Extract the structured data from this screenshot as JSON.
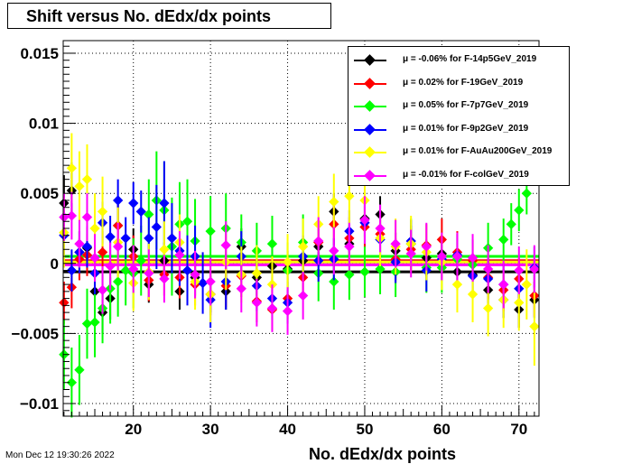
{
  "title": "Shift versus No. dEdx/dx points",
  "timestamp": "Mon Dec 12 19:30:26 2022",
  "chart_data": {
    "type": "scatter",
    "title": "Shift versus No. dEdx/dx points",
    "xlabel": "No. dEdx/dx points",
    "ylabel": "",
    "xlim": [
      10.9,
      72.6
    ],
    "ylim": [
      -0.0109,
      0.0159
    ],
    "x_ticks": [
      20,
      30,
      40,
      50,
      60,
      70
    ],
    "x_tick_labels": [
      "20",
      "30",
      "40",
      "50",
      "60",
      "70"
    ],
    "y_ticks": [
      -0.01,
      -0.005,
      0,
      0.005,
      0.01,
      0.015
    ],
    "y_tick_labels": [
      "−0.01",
      "−0.005",
      "0",
      "0.005",
      "0.01",
      "0.015"
    ],
    "grid": true,
    "legend_position": "top-right",
    "series": [
      {
        "name": "μ = -0.06% for F-14p5GeV_2019",
        "color": "#000000",
        "mean": -0.0006,
        "x": [
          11,
          12,
          13,
          14,
          15,
          16,
          17,
          18,
          20,
          22,
          24,
          26,
          28,
          30,
          32,
          34,
          36,
          38,
          40,
          42,
          44,
          46,
          48,
          50,
          52,
          54,
          56,
          58,
          60,
          62,
          64,
          66,
          68,
          70,
          72
        ],
        "y": [
          0.0043,
          0.0052,
          0.0008,
          0.0011,
          -0.002,
          -0.0035,
          -0.0025,
          0.0027,
          0.001,
          -0.0015,
          0.0002,
          -0.002,
          -0.001,
          -0.0022,
          -0.002,
          0.0012,
          -0.001,
          -0.0002,
          -0.0004,
          0.0002,
          0.0012,
          0.0037,
          0.0014,
          0.0032,
          0.0035,
          0.0009,
          0.0014,
          0.0004,
          0.0007,
          -0.0006,
          -0.0008,
          -0.0019,
          -0.0026,
          -0.0033,
          -0.0026
        ],
        "err": [
          0.002,
          0.002,
          0.0015,
          0.0015,
          0.0015,
          0.0015,
          0.0015,
          0.0015,
          0.0015,
          0.0013,
          0.0013,
          0.0013,
          0.0013,
          0.0013,
          0.0013,
          0.0013,
          0.0013,
          0.0013,
          0.0013,
          0.0013,
          0.0013,
          0.0013,
          0.0013,
          0.0013,
          0.0013,
          0.0013,
          0.0013,
          0.0013,
          0.0013,
          0.0013,
          0.0013,
          0.0013,
          0.0013,
          0.0013,
          0.0013
        ]
      },
      {
        "name": "μ = 0.02% for F-19GeV_2019",
        "color": "#ff0000",
        "mean": 0.0002,
        "x": [
          11,
          12,
          13,
          14,
          16,
          18,
          20,
          22,
          24,
          26,
          28,
          30,
          32,
          34,
          36,
          38,
          40,
          42,
          44,
          46,
          48,
          50,
          52,
          54,
          56,
          58,
          60,
          62,
          64,
          66,
          68,
          70,
          72
        ],
        "y": [
          -0.0028,
          -0.0017,
          0.0003,
          0.0006,
          0.0008,
          0.0027,
          0.0005,
          -0.0012,
          -0.0008,
          -0.001,
          -0.0015,
          -0.0022,
          -0.0016,
          -0.0009,
          -0.0027,
          -0.0033,
          -0.0025,
          -0.001,
          0.0015,
          0.0028,
          0.0018,
          0.0026,
          0.0021,
          0.0003,
          0.001,
          0.0013,
          0.0017,
          0.0008,
          0.0002,
          -0.001,
          -0.0019,
          -0.0011,
          -0.0023
        ],
        "err": [
          0.0015,
          0.0015,
          0.0015,
          0.0015,
          0.0015,
          0.0015,
          0.0015,
          0.0015,
          0.0015,
          0.0015,
          0.0015,
          0.0015,
          0.0015,
          0.0015,
          0.0015,
          0.0015,
          0.0015,
          0.0015,
          0.0015,
          0.0015,
          0.0015,
          0.0015,
          0.0015,
          0.0015,
          0.0015,
          0.0015,
          0.0015,
          0.0015,
          0.0015,
          0.0015,
          0.0015,
          0.0015,
          0.0015
        ]
      },
      {
        "name": "μ = 0.05% for F-7p7GeV_2019",
        "color": "#00ff00",
        "mean": 0.0005,
        "x": [
          11,
          12,
          13,
          14,
          15,
          16,
          17,
          18,
          19,
          20,
          21,
          22,
          23,
          24,
          25,
          26,
          27,
          28,
          30,
          32,
          34,
          36,
          38,
          40,
          42,
          44,
          46,
          48,
          50,
          52,
          54,
          56,
          58,
          60,
          62,
          64,
          66,
          68,
          69,
          70,
          71
        ],
        "y": [
          -0.0065,
          -0.0085,
          -0.0076,
          -0.0043,
          -0.0042,
          -0.0032,
          -0.0018,
          -0.0013,
          -0.0005,
          -0.0007,
          0.0002,
          0.0035,
          0.0045,
          0.0038,
          0.0012,
          0.0028,
          0.003,
          0.0016,
          0.0023,
          0.0025,
          0.0015,
          0.0009,
          0.0014,
          -0.0005,
          0.0015,
          -0.0007,
          -0.0013,
          -0.0008,
          -0.0006,
          -0.0004,
          -0.0006,
          0.0014,
          -0.0003,
          -0.0003,
          0.0003,
          -0.0001,
          0.0011,
          0.0017,
          0.0028,
          0.0038,
          0.005
        ],
        "err": [
          0.0025,
          0.0025,
          0.0025,
          0.0025,
          0.0025,
          0.0025,
          0.0025,
          0.0025,
          0.0025,
          0.0025,
          0.0025,
          0.0025,
          0.0035,
          0.0035,
          0.0035,
          0.003,
          0.003,
          0.003,
          0.0025,
          0.0025,
          0.002,
          0.002,
          0.002,
          0.002,
          0.002,
          0.002,
          0.002,
          0.0018,
          0.0018,
          0.0018,
          0.0018,
          0.0018,
          0.0018,
          0.0018,
          0.0018,
          0.0018,
          0.0018,
          0.0015,
          0.0015,
          0.0015,
          0.0015
        ]
      },
      {
        "name": "μ = 0.01% for F-9p2GeV_2019",
        "color": "#0000ff",
        "mean": 0.0001,
        "x": [
          11,
          12,
          13,
          14,
          15,
          16,
          17,
          18,
          19,
          20,
          21,
          22,
          23,
          24,
          25,
          26,
          27,
          28,
          29,
          30,
          32,
          34,
          36,
          38,
          40,
          42,
          44,
          46,
          48,
          50,
          52,
          54,
          56,
          58,
          60,
          62,
          64,
          66,
          68,
          70,
          72
        ],
        "y": [
          0.002,
          -0.0005,
          0.0008,
          0.0012,
          -0.0007,
          0.0029,
          0.0019,
          0.0045,
          0.0018,
          0.0043,
          0.0037,
          0.0018,
          0.0026,
          0.0043,
          0.0018,
          0.0009,
          -0.0005,
          0.0005,
          -0.0014,
          -0.0026,
          -0.0013,
          0.0005,
          -0.0016,
          -0.0025,
          -0.0028,
          0.0005,
          0.0002,
          0.0003,
          0.0023,
          0.0029,
          0.0017,
          0.0001,
          0.0016,
          -0.0005,
          0.0003,
          0.0006,
          -0.0009,
          -0.0011,
          -0.0015,
          -0.0018,
          -0.0003
        ],
        "err": [
          0.0015,
          0.0015,
          0.0015,
          0.0015,
          0.0015,
          0.0015,
          0.0015,
          0.0015,
          0.0015,
          0.0015,
          0.0015,
          0.0015,
          0.003,
          0.003,
          0.0025,
          0.0025,
          0.0025,
          0.0022,
          0.0022,
          0.002,
          0.002,
          0.0018,
          0.0018,
          0.0015,
          0.0015,
          0.0015,
          0.0015,
          0.0015,
          0.0015,
          0.0015,
          0.0015,
          0.0015,
          0.0015,
          0.0015,
          0.0015,
          0.0015,
          0.0015,
          0.0015,
          0.0015,
          0.0015,
          0.0015
        ]
      },
      {
        "name": "μ = 0.01% for F-AuAu200GeV_2019",
        "color": "#ffff00",
        "mean": 0.0001,
        "x": [
          11,
          12,
          13,
          14,
          15,
          16,
          18,
          20,
          22,
          24,
          26,
          28,
          30,
          32,
          34,
          36,
          38,
          40,
          42,
          44,
          46,
          48,
          50,
          52,
          54,
          56,
          58,
          60,
          62,
          64,
          66,
          68,
          70,
          71,
          72
        ],
        "y": [
          0.0022,
          0.0068,
          0.0055,
          0.006,
          0.0025,
          0.0037,
          0.0015,
          -0.0014,
          -0.0006,
          0.001,
          0.0015,
          -0.0013,
          -0.0022,
          0.0001,
          -0.0008,
          -0.0007,
          -0.0015,
          0.0001,
          0.0012,
          0.0028,
          0.0044,
          0.0048,
          0.0045,
          0.0018,
          0.0012,
          0.0014,
          0.0008,
          0.0001,
          -0.0015,
          -0.0022,
          -0.0032,
          -0.0026,
          -0.0028,
          -0.0015,
          -0.0045
        ],
        "err": [
          0.0025,
          0.0025,
          0.0025,
          0.0025,
          0.0025,
          0.0025,
          0.0025,
          0.002,
          0.002,
          0.002,
          0.002,
          0.002,
          0.002,
          0.002,
          0.002,
          0.002,
          0.002,
          0.002,
          0.002,
          0.002,
          0.002,
          0.002,
          0.002,
          0.002,
          0.002,
          0.002,
          0.002,
          0.002,
          0.002,
          0.002,
          0.002,
          0.002,
          0.002,
          0.0025,
          0.0028
        ]
      },
      {
        "name": "μ = -0.01% for F-colGeV_2019",
        "color": "#ff00ff",
        "mean": -0.0001,
        "x": [
          11,
          12,
          13,
          14,
          15,
          16,
          17,
          18,
          20,
          22,
          24,
          26,
          28,
          30,
          32,
          34,
          36,
          38,
          40,
          42,
          44,
          46,
          48,
          50,
          52,
          54,
          56,
          58,
          60,
          62,
          64,
          66,
          68,
          70,
          72
        ],
        "y": [
          0.0033,
          0.0034,
          0.0014,
          0.0033,
          0.0004,
          -0.0019,
          -0.0002,
          0.0012,
          -0.0004,
          -0.0007,
          -0.0011,
          0.0006,
          -0.0008,
          -0.0013,
          0.0013,
          -0.0018,
          -0.0028,
          -0.0032,
          -0.0034,
          -0.0023,
          0.0016,
          0.0009,
          0.0012,
          0.0031,
          0.0025,
          0.0014,
          0.0007,
          0.0012,
          0.0005,
          0.0005,
          0.0004,
          -0.0004,
          -0.0015,
          -0.0005,
          -0.0004
        ],
        "err": [
          0.0017,
          0.0017,
          0.0017,
          0.0017,
          0.0017,
          0.0017,
          0.0017,
          0.0017,
          0.0017,
          0.0017,
          0.0017,
          0.0017,
          0.0017,
          0.0017,
          0.0017,
          0.0017,
          0.0017,
          0.0017,
          0.0017,
          0.0017,
          0.0017,
          0.0017,
          0.0017,
          0.0017,
          0.0017,
          0.0017,
          0.0017,
          0.0017,
          0.0017,
          0.0017,
          0.0017,
          0.0017,
          0.0017,
          0.0017,
          0.0017
        ]
      }
    ]
  }
}
